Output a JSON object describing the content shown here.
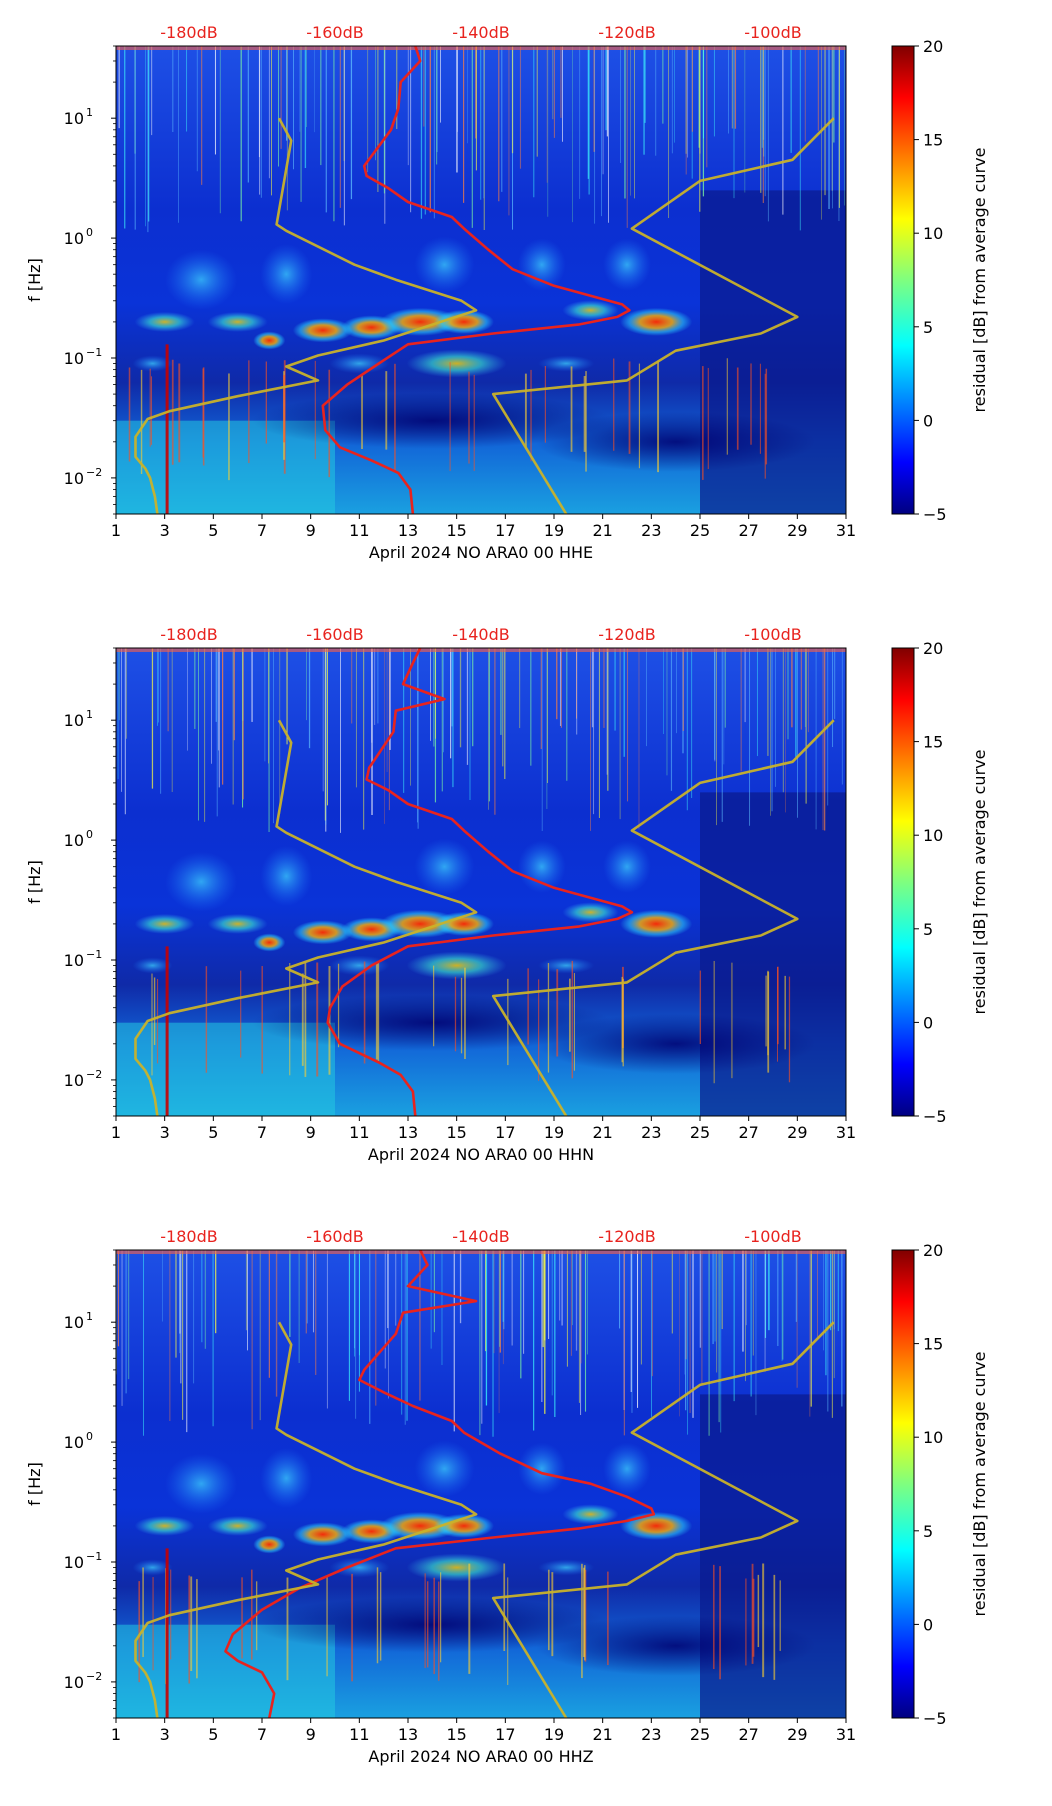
{
  "chart_data": [
    {
      "type": "heatmap",
      "title": "",
      "xlabel": "April 2024 NO ARA0 00 HHE",
      "ylabel": "f [Hz]",
      "x_ticks": [
        "1",
        "3",
        "5",
        "7",
        "9",
        "11",
        "13",
        "15",
        "17",
        "19",
        "21",
        "23",
        "25",
        "27",
        "29",
        "31"
      ],
      "xlim": [
        1,
        31
      ],
      "y_ticks": [
        "10^1",
        "10^0",
        "10^-1",
        "10^-2"
      ],
      "y_tick_base": "10",
      "y_tick_exponents": [
        "1",
        "0",
        "−1",
        "−2"
      ],
      "ylim_hz": [
        0.005,
        40
      ],
      "top_axis_labels": [
        "-180dB",
        "-160dB",
        "-140dB",
        "-120dB",
        "-100dB"
      ],
      "top_axis_day_positions": [
        4,
        10,
        16,
        22,
        28
      ],
      "colorbar": {
        "label": "residual [dB] from average curve",
        "ticks": [
          "20",
          "15",
          "10",
          "5",
          "0",
          "−5"
        ],
        "range": [
          -5,
          20
        ],
        "colormap": "jet"
      },
      "series": [
        {
          "name": "red_psd_curve",
          "color": "#e8231e",
          "points": [
            [
              13.3,
              40
            ],
            [
              13.5,
              30
            ],
            [
              12.7,
              20
            ],
            [
              12.6,
              12
            ],
            [
              12.3,
              8
            ],
            [
              11.2,
              4
            ],
            [
              11.3,
              3.3
            ],
            [
              12.2,
              2.6
            ],
            [
              13.0,
              2.0
            ],
            [
              14.8,
              1.5
            ],
            [
              15.3,
              1.2
            ],
            [
              16.3,
              0.8
            ],
            [
              17.3,
              0.55
            ],
            [
              19.0,
              0.4
            ],
            [
              20.5,
              0.33
            ],
            [
              21.8,
              0.28
            ],
            [
              22.1,
              0.25
            ],
            [
              21.6,
              0.22
            ],
            [
              20.0,
              0.19
            ],
            [
              16.5,
              0.16
            ],
            [
              13.0,
              0.13
            ],
            [
              11.8,
              0.09
            ],
            [
              10.5,
              0.06
            ],
            [
              9.5,
              0.04
            ],
            [
              9.6,
              0.025
            ],
            [
              10.2,
              0.018
            ],
            [
              11.5,
              0.014
            ],
            [
              12.6,
              0.011
            ],
            [
              13.1,
              0.008
            ],
            [
              13.2,
              0.005
            ]
          ]
        },
        {
          "name": "yellow_model_curve_low",
          "color": "#c9b22a",
          "points": [
            [
              7.7,
              10
            ],
            [
              8.2,
              6.5
            ],
            [
              7.6,
              1.3
            ],
            [
              8.0,
              1.15
            ],
            [
              10.8,
              0.6
            ],
            [
              12.5,
              0.45
            ],
            [
              15.2,
              0.3
            ],
            [
              15.8,
              0.25
            ],
            [
              12.0,
              0.14
            ],
            [
              9.3,
              0.105
            ],
            [
              8.0,
              0.085
            ],
            [
              9.3,
              0.065
            ],
            [
              6.0,
              0.048
            ],
            [
              3.2,
              0.036
            ],
            [
              2.3,
              0.031
            ],
            [
              1.8,
              0.022
            ],
            [
              1.8,
              0.015
            ],
            [
              2.2,
              0.012
            ],
            [
              2.4,
              0.01
            ],
            [
              2.6,
              0.007
            ],
            [
              2.7,
              0.005
            ]
          ]
        },
        {
          "name": "yellow_model_curve_high",
          "color": "#c9b22a",
          "points": [
            [
              30.5,
              10
            ],
            [
              28.8,
              4.5
            ],
            [
              25.0,
              3.0
            ],
            [
              22.2,
              1.2
            ],
            [
              29.0,
              0.22
            ],
            [
              27.5,
              0.16
            ],
            [
              24.0,
              0.115
            ],
            [
              22.0,
              0.065
            ],
            [
              16.5,
              0.05
            ],
            [
              19.5,
              0.005
            ]
          ]
        }
      ]
    },
    {
      "type": "heatmap",
      "title": "",
      "xlabel": "April 2024 NO ARA0 00 HHN",
      "ylabel": "f [Hz]",
      "x_ticks": [
        "1",
        "3",
        "5",
        "7",
        "9",
        "11",
        "13",
        "15",
        "17",
        "19",
        "21",
        "23",
        "25",
        "27",
        "29",
        "31"
      ],
      "xlim": [
        1,
        31
      ],
      "y_ticks": [
        "10^1",
        "10^0",
        "10^-1",
        "10^-2"
      ],
      "y_tick_base": "10",
      "y_tick_exponents": [
        "1",
        "0",
        "−1",
        "−2"
      ],
      "ylim_hz": [
        0.005,
        40
      ],
      "top_axis_labels": [
        "-180dB",
        "-160dB",
        "-140dB",
        "-120dB",
        "-100dB"
      ],
      "top_axis_day_positions": [
        4,
        10,
        16,
        22,
        28
      ],
      "colorbar": {
        "label": "residual [dB] from average curve",
        "ticks": [
          "20",
          "15",
          "10",
          "5",
          "0",
          "−5"
        ],
        "range": [
          -5,
          20
        ],
        "colormap": "jet"
      },
      "series": [
        {
          "name": "red_psd_curve",
          "color": "#e8231e",
          "points": [
            [
              13.5,
              40
            ],
            [
              13.2,
              30
            ],
            [
              12.8,
              20
            ],
            [
              14.5,
              15
            ],
            [
              12.5,
              12
            ],
            [
              12.4,
              8
            ],
            [
              11.4,
              4
            ],
            [
              11.3,
              3.2
            ],
            [
              12.2,
              2.6
            ],
            [
              13.0,
              2.0
            ],
            [
              14.8,
              1.5
            ],
            [
              15.3,
              1.2
            ],
            [
              16.3,
              0.8
            ],
            [
              17.3,
              0.55
            ],
            [
              19.0,
              0.4
            ],
            [
              20.5,
              0.33
            ],
            [
              21.8,
              0.28
            ],
            [
              22.2,
              0.25
            ],
            [
              21.6,
              0.22
            ],
            [
              20.0,
              0.19
            ],
            [
              16.5,
              0.16
            ],
            [
              13.0,
              0.13
            ],
            [
              11.5,
              0.09
            ],
            [
              10.3,
              0.06
            ],
            [
              9.8,
              0.04
            ],
            [
              9.7,
              0.03
            ],
            [
              10.2,
              0.02
            ],
            [
              11.8,
              0.014
            ],
            [
              12.7,
              0.011
            ],
            [
              13.2,
              0.008
            ],
            [
              13.3,
              0.005
            ]
          ]
        },
        {
          "name": "yellow_model_curve_low",
          "color": "#c9b22a",
          "points": [
            [
              7.7,
              10
            ],
            [
              8.2,
              6.5
            ],
            [
              7.6,
              1.3
            ],
            [
              8.0,
              1.15
            ],
            [
              10.8,
              0.6
            ],
            [
              12.5,
              0.45
            ],
            [
              15.2,
              0.3
            ],
            [
              15.8,
              0.25
            ],
            [
              12.0,
              0.14
            ],
            [
              9.3,
              0.105
            ],
            [
              8.0,
              0.085
            ],
            [
              9.3,
              0.065
            ],
            [
              6.0,
              0.048
            ],
            [
              3.2,
              0.036
            ],
            [
              2.3,
              0.031
            ],
            [
              1.8,
              0.022
            ],
            [
              1.8,
              0.015
            ],
            [
              2.2,
              0.012
            ],
            [
              2.4,
              0.01
            ],
            [
              2.6,
              0.007
            ],
            [
              2.7,
              0.005
            ]
          ]
        },
        {
          "name": "yellow_model_curve_high",
          "color": "#c9b22a",
          "points": [
            [
              30.5,
              10
            ],
            [
              28.8,
              4.5
            ],
            [
              25.0,
              3.0
            ],
            [
              22.2,
              1.2
            ],
            [
              29.0,
              0.22
            ],
            [
              27.5,
              0.16
            ],
            [
              24.0,
              0.115
            ],
            [
              22.0,
              0.065
            ],
            [
              16.5,
              0.05
            ],
            [
              19.5,
              0.005
            ]
          ]
        }
      ]
    },
    {
      "type": "heatmap",
      "title": "",
      "xlabel": "April 2024 NO ARA0 00 HHZ",
      "ylabel": "f [Hz]",
      "x_ticks": [
        "1",
        "3",
        "5",
        "7",
        "9",
        "11",
        "13",
        "15",
        "17",
        "19",
        "21",
        "23",
        "25",
        "27",
        "29",
        "31"
      ],
      "xlim": [
        1,
        31
      ],
      "y_ticks": [
        "10^1",
        "10^0",
        "10^-1",
        "10^-2"
      ],
      "y_tick_base": "10",
      "y_tick_exponents": [
        "1",
        "0",
        "−1",
        "−2"
      ],
      "ylim_hz": [
        0.005,
        40
      ],
      "top_axis_labels": [
        "-180dB",
        "-160dB",
        "-140dB",
        "-120dB",
        "-100dB"
      ],
      "top_axis_day_positions": [
        4,
        10,
        16,
        22,
        28
      ],
      "colorbar": {
        "label": "residual [dB] from average curve",
        "ticks": [
          "20",
          "15",
          "10",
          "5",
          "0",
          "−5"
        ],
        "range": [
          -5,
          20
        ],
        "colormap": "jet"
      },
      "series": [
        {
          "name": "red_psd_curve",
          "color": "#e8231e",
          "points": [
            [
              13.5,
              40
            ],
            [
              13.8,
              30
            ],
            [
              13.0,
              20
            ],
            [
              15.8,
              15
            ],
            [
              12.8,
              12
            ],
            [
              12.5,
              8
            ],
            [
              11.2,
              4
            ],
            [
              11.0,
              3.3
            ],
            [
              12.0,
              2.6
            ],
            [
              13.2,
              2.0
            ],
            [
              14.8,
              1.5
            ],
            [
              15.3,
              1.2
            ],
            [
              16.8,
              0.8
            ],
            [
              18.5,
              0.55
            ],
            [
              20.5,
              0.45
            ],
            [
              22.0,
              0.35
            ],
            [
              23.0,
              0.28
            ],
            [
              23.1,
              0.25
            ],
            [
              22.0,
              0.22
            ],
            [
              20.0,
              0.19
            ],
            [
              16.5,
              0.16
            ],
            [
              12.5,
              0.13
            ],
            [
              10.5,
              0.09
            ],
            [
              8.5,
              0.06
            ],
            [
              7.0,
              0.04
            ],
            [
              5.8,
              0.025
            ],
            [
              5.5,
              0.018
            ],
            [
              6.0,
              0.015
            ],
            [
              7.0,
              0.012
            ],
            [
              7.5,
              0.008
            ],
            [
              7.3,
              0.005
            ]
          ]
        },
        {
          "name": "yellow_model_curve_low",
          "color": "#c9b22a",
          "points": [
            [
              7.7,
              10
            ],
            [
              8.2,
              6.5
            ],
            [
              7.6,
              1.3
            ],
            [
              8.0,
              1.15
            ],
            [
              10.8,
              0.6
            ],
            [
              12.5,
              0.45
            ],
            [
              15.2,
              0.3
            ],
            [
              15.8,
              0.25
            ],
            [
              12.0,
              0.14
            ],
            [
              9.3,
              0.105
            ],
            [
              8.0,
              0.085
            ],
            [
              9.3,
              0.065
            ],
            [
              6.0,
              0.048
            ],
            [
              3.2,
              0.036
            ],
            [
              2.3,
              0.031
            ],
            [
              1.8,
              0.022
            ],
            [
              1.8,
              0.015
            ],
            [
              2.2,
              0.012
            ],
            [
              2.4,
              0.01
            ],
            [
              2.6,
              0.007
            ],
            [
              2.7,
              0.005
            ]
          ]
        },
        {
          "name": "yellow_model_curve_high",
          "color": "#c9b22a",
          "points": [
            [
              30.5,
              10
            ],
            [
              28.8,
              4.5
            ],
            [
              25.0,
              3.0
            ],
            [
              22.2,
              1.2
            ],
            [
              29.0,
              0.22
            ],
            [
              27.5,
              0.16
            ],
            [
              24.0,
              0.115
            ],
            [
              22.0,
              0.065
            ],
            [
              16.5,
              0.05
            ],
            [
              19.5,
              0.005
            ]
          ]
        }
      ]
    }
  ]
}
